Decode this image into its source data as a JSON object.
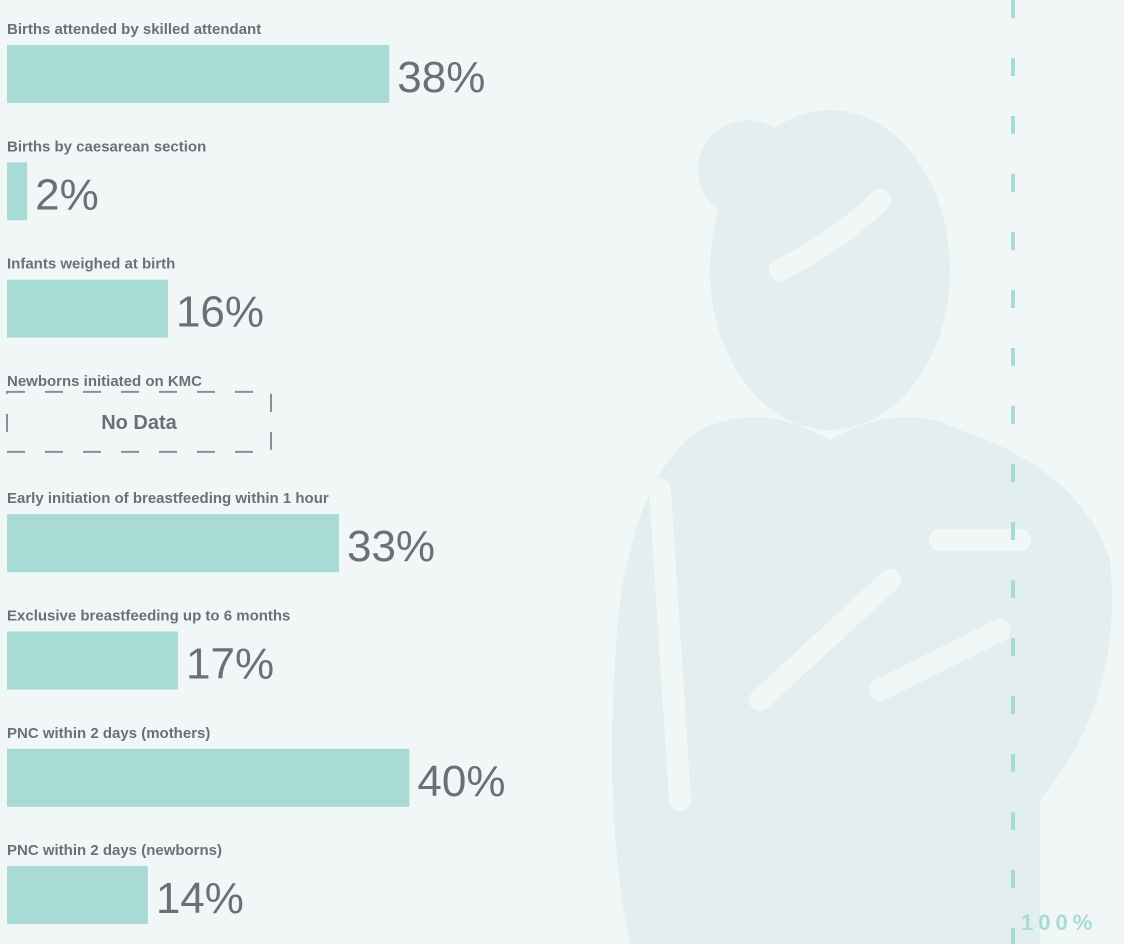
{
  "chart_data": {
    "type": "bar",
    "orientation": "horizontal",
    "categories": [
      "Births attended by skilled attendant",
      "Births by caesarean section",
      "Infants weighed at birth",
      "Newborns initiated on KMC",
      "Early initiation of breastfeeding within 1 hour",
      "Exclusive breastfeeding up to 6 months",
      "PNC within 2 days (mothers)",
      "PNC within 2 days (newborns)"
    ],
    "values": [
      38,
      2,
      16,
      null,
      33,
      17,
      40,
      14
    ],
    "value_labels": [
      "38%",
      "2%",
      "16%",
      "No Data",
      "33%",
      "17%",
      "40%",
      "14%"
    ],
    "color": "#a8dbd6",
    "xlim": [
      0,
      100
    ],
    "xticks": [
      {
        "value": 100,
        "label": "100%"
      }
    ]
  }
}
